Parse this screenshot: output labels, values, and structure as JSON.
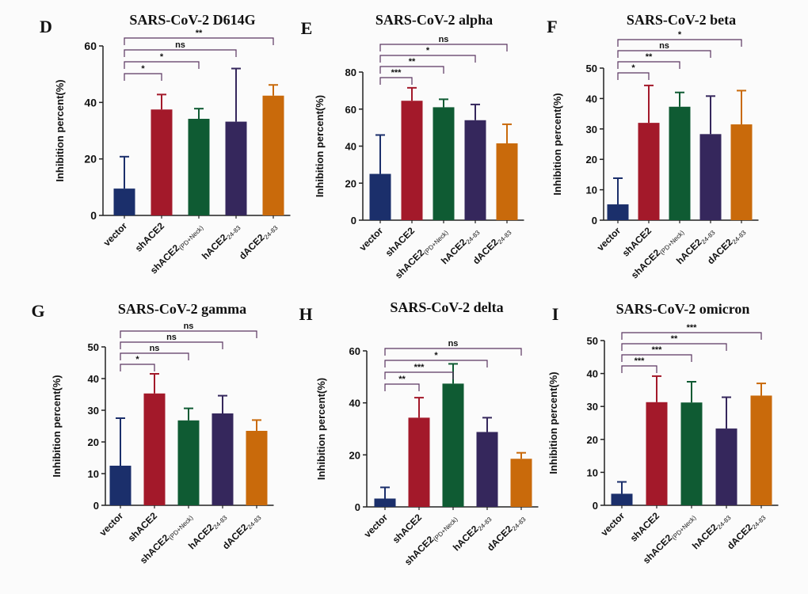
{
  "figure": {
    "categories": [
      "vector",
      "shACE2",
      "shACE2(PD+Neck)",
      "hACE224-83",
      "dACE224-83"
    ],
    "category_labels": [
      {
        "main": "vector",
        "sub": ""
      },
      {
        "main": "shACE2",
        "sub": ""
      },
      {
        "main": "shACE2",
        "sub": "(PD+Neck)"
      },
      {
        "main": "hACE2",
        "sub": "24-83"
      },
      {
        "main": "dACE2",
        "sub": "24-83"
      }
    ],
    "bar_colors": [
      "#1b2f6b",
      "#a3192a",
      "#0f5b33",
      "#35275c",
      "#c96a0b"
    ]
  },
  "chart_data": [
    {
      "type": "bar",
      "panel": "D",
      "title": "SARS-CoV-2 D614G",
      "ylabel": "Inhibition percent(%)",
      "categories": [
        "vector",
        "shACE2",
        "shACE2(PD+Neck)",
        "hACE224-83",
        "dACE224-83"
      ],
      "values": [
        9.5,
        37.5,
        34.2,
        33.2,
        42.4
      ],
      "errors": [
        11.3,
        5.3,
        3.6,
        18.8,
        3.8
      ],
      "ylim": [
        0,
        60
      ],
      "yticks": [
        0,
        20,
        40,
        60
      ],
      "significance": [
        {
          "from": 0,
          "to": 1,
          "label": "*"
        },
        {
          "from": 0,
          "to": 2,
          "label": "*"
        },
        {
          "from": 0,
          "to": 3,
          "label": "ns"
        },
        {
          "from": 0,
          "to": 4,
          "label": "**"
        }
      ]
    },
    {
      "type": "bar",
      "panel": "E",
      "title": "SARS-CoV-2 alpha",
      "ylabel": "Inhibition percent(%)",
      "categories": [
        "vector",
        "shACE2",
        "shACE2(PD+Neck)",
        "hACE224-83",
        "dACE224-83"
      ],
      "values": [
        25,
        64.5,
        61,
        54,
        41.5
      ],
      "errors": [
        21,
        7,
        4.3,
        8.5,
        10.3
      ],
      "ylim": [
        0,
        80
      ],
      "yticks": [
        0,
        20,
        40,
        60,
        80
      ],
      "significance": [
        {
          "from": 0,
          "to": 1,
          "label": "***"
        },
        {
          "from": 0,
          "to": 2,
          "label": "**"
        },
        {
          "from": 0,
          "to": 3,
          "label": "*"
        },
        {
          "from": 0,
          "to": 4,
          "label": "ns"
        }
      ]
    },
    {
      "type": "bar",
      "panel": "F",
      "title": "SARS-CoV-2 beta",
      "ylabel": "Inhibition percent(%)",
      "categories": [
        "vector",
        "shACE2",
        "shACE2(PD+Neck)",
        "hACE224-83",
        "dACE224-83"
      ],
      "values": [
        5.2,
        32,
        37.3,
        28.3,
        31.5
      ],
      "errors": [
        8.6,
        12.3,
        4.7,
        12.5,
        11.1
      ],
      "ylim": [
        0,
        50
      ],
      "yticks": [
        0,
        10,
        20,
        30,
        40,
        50
      ],
      "significance": [
        {
          "from": 0,
          "to": 1,
          "label": "*"
        },
        {
          "from": 0,
          "to": 2,
          "label": "**"
        },
        {
          "from": 0,
          "to": 3,
          "label": "ns"
        },
        {
          "from": 0,
          "to": 4,
          "label": "*"
        }
      ]
    },
    {
      "type": "bar",
      "panel": "G",
      "title": "SARS-CoV-2 gamma",
      "ylabel": "Inhibition percent(%)",
      "categories": [
        "vector",
        "shACE2",
        "shACE2(PD+Neck)",
        "hACE224-83",
        "dACE224-83"
      ],
      "values": [
        12.5,
        35.3,
        26.8,
        29,
        23.5
      ],
      "errors": [
        15,
        6.2,
        3.8,
        5.6,
        3.4
      ],
      "ylim": [
        0,
        50
      ],
      "yticks": [
        0,
        10,
        20,
        30,
        40,
        50
      ],
      "significance": [
        {
          "from": 0,
          "to": 1,
          "label": "*"
        },
        {
          "from": 0,
          "to": 2,
          "label": "ns"
        },
        {
          "from": 0,
          "to": 3,
          "label": "ns"
        },
        {
          "from": 0,
          "to": 4,
          "label": "ns"
        }
      ]
    },
    {
      "type": "bar",
      "panel": "H",
      "title": "SARS-CoV-2 delta",
      "ylabel": "Inhibition percent(%)",
      "categories": [
        "vector",
        "shACE2",
        "shACE2(PD+Neck)",
        "hACE224-83",
        "dACE224-83"
      ],
      "values": [
        3.2,
        34.3,
        47.4,
        28.8,
        18.5
      ],
      "errors": [
        4.3,
        7.7,
        7.6,
        5.5,
        2.3
      ],
      "ylim": [
        0,
        60
      ],
      "yticks": [
        0,
        20,
        40,
        60
      ],
      "significance": [
        {
          "from": 0,
          "to": 1,
          "label": "**"
        },
        {
          "from": 0,
          "to": 2,
          "label": "***"
        },
        {
          "from": 0,
          "to": 3,
          "label": "*"
        },
        {
          "from": 0,
          "to": 4,
          "label": "ns"
        }
      ]
    },
    {
      "type": "bar",
      "panel": "I",
      "title": "SARS-CoV-2 omicron",
      "ylabel": "Inhibition percent(%)",
      "categories": [
        "vector",
        "shACE2",
        "shACE2(PD+Neck)",
        "hACE224-83",
        "dACE224-83"
      ],
      "values": [
        3.5,
        31.3,
        31.2,
        23.3,
        33.3
      ],
      "errors": [
        3.6,
        7.9,
        6.3,
        9.5,
        3.7
      ],
      "ylim": [
        0,
        50
      ],
      "yticks": [
        0,
        10,
        20,
        30,
        40,
        50
      ],
      "significance": [
        {
          "from": 0,
          "to": 1,
          "label": "***"
        },
        {
          "from": 0,
          "to": 2,
          "label": "***"
        },
        {
          "from": 0,
          "to": 3,
          "label": "**"
        },
        {
          "from": 0,
          "to": 4,
          "label": "***"
        }
      ]
    }
  ]
}
